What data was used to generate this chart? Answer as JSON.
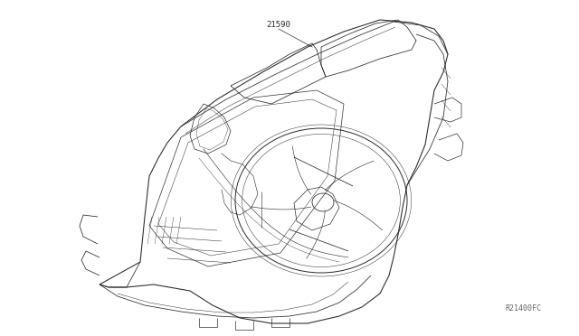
{
  "background_color": "#ffffff",
  "line_color": "#2a2a2a",
  "line_width": 0.7,
  "label_21590": "21590",
  "label_ref": "R21400FC",
  "font_size_label": 6.5,
  "font_size_ref": 6.0,
  "fig_width": 6.4,
  "fig_height": 3.72,
  "dpi": 100
}
